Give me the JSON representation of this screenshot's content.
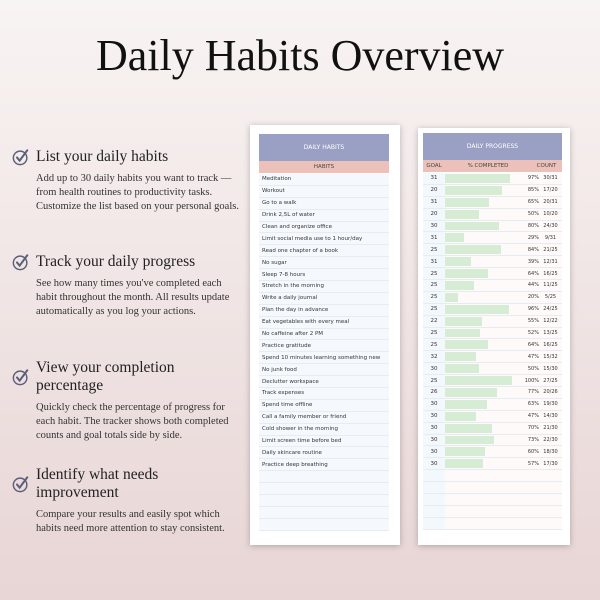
{
  "title": "Daily Habits Overview",
  "features": [
    {
      "icon": "check-circle-icon",
      "title": "List your daily habits",
      "text": "Add up to 30 daily habits you want to track — from health routines to productivity tasks. Customize the list based on your personal goals."
    },
    {
      "icon": "check-circle-icon",
      "title": "Track your daily progress",
      "text": "See how many times you've completed each habit throughout the month. All results update automatically as you log your actions."
    },
    {
      "icon": "check-circle-icon",
      "title": "View your completion percentage",
      "text": "Quickly check the percentage of progress for each habit. The tracker shows both completed counts and goal totals side by side."
    },
    {
      "icon": "check-circle-icon",
      "title": "Identify what needs improvement",
      "text": "Compare your results and easily spot which habits need more attention to stay consistent."
    }
  ],
  "habits_card": {
    "header": "DAILY HABITS",
    "column": "HABITS",
    "items": [
      "Meditation",
      "Workout",
      "Go to a walk",
      "Drink 2,5L of water",
      "Clean and organize office",
      "Limit social media use to 1 hour/day",
      "Read one chapter of a book",
      "No sugar",
      "Sleep 7-8 hours",
      "Stretch in the morning",
      "Write a daily journal",
      "Plan the day in advance",
      "Eat vegetables with every meal",
      "No caffeine after 2 PM",
      "Practice gratitude",
      "Spend 10 minutes learning something new",
      "No junk food",
      "Declutter workspace",
      "Track expenses",
      "Spend time offline",
      "Call a family member or friend",
      "Cold shower in the morning",
      "Limit screen time before bed",
      "Daily skincare routine",
      "Practice deep breathing"
    ]
  },
  "progress_card": {
    "header": "DAILY PROGRESS",
    "columns": {
      "goal": "GOAL",
      "pct": "% COMPLETED",
      "count": "COUNT"
    },
    "rows": [
      {
        "goal": "31",
        "pct": 97,
        "count": "30/31"
      },
      {
        "goal": "20",
        "pct": 85,
        "count": "17/20"
      },
      {
        "goal": "31",
        "pct": 65,
        "count": "20/31"
      },
      {
        "goal": "20",
        "pct": 50,
        "count": "10/20"
      },
      {
        "goal": "30",
        "pct": 80,
        "count": "24/30"
      },
      {
        "goal": "31",
        "pct": 29,
        "count": "9/31"
      },
      {
        "goal": "25",
        "pct": 84,
        "count": "21/25"
      },
      {
        "goal": "31",
        "pct": 39,
        "count": "12/31"
      },
      {
        "goal": "25",
        "pct": 64,
        "count": "16/25"
      },
      {
        "goal": "25",
        "pct": 44,
        "count": "11/25"
      },
      {
        "goal": "25",
        "pct": 20,
        "count": "5/25"
      },
      {
        "goal": "25",
        "pct": 96,
        "count": "24/25"
      },
      {
        "goal": "22",
        "pct": 55,
        "count": "12/22"
      },
      {
        "goal": "25",
        "pct": 52,
        "count": "13/25"
      },
      {
        "goal": "25",
        "pct": 64,
        "count": "16/25"
      },
      {
        "goal": "32",
        "pct": 47,
        "count": "15/32"
      },
      {
        "goal": "30",
        "pct": 50,
        "count": "15/30"
      },
      {
        "goal": "25",
        "pct": 100,
        "count": "27/25"
      },
      {
        "goal": "26",
        "pct": 77,
        "count": "20/26"
      },
      {
        "goal": "30",
        "pct": 63,
        "count": "19/30"
      },
      {
        "goal": "30",
        "pct": 47,
        "count": "14/30"
      },
      {
        "goal": "30",
        "pct": 70,
        "count": "21/30"
      },
      {
        "goal": "30",
        "pct": 73,
        "count": "22/30"
      },
      {
        "goal": "30",
        "pct": 60,
        "count": "18/30"
      },
      {
        "goal": "30",
        "pct": 57,
        "count": "17/30"
      }
    ]
  },
  "colors": {
    "header": "#9aa0c4",
    "subheader": "#ecc1b9",
    "bar": "#d7ecd5",
    "icon": "#5a5f7a"
  }
}
